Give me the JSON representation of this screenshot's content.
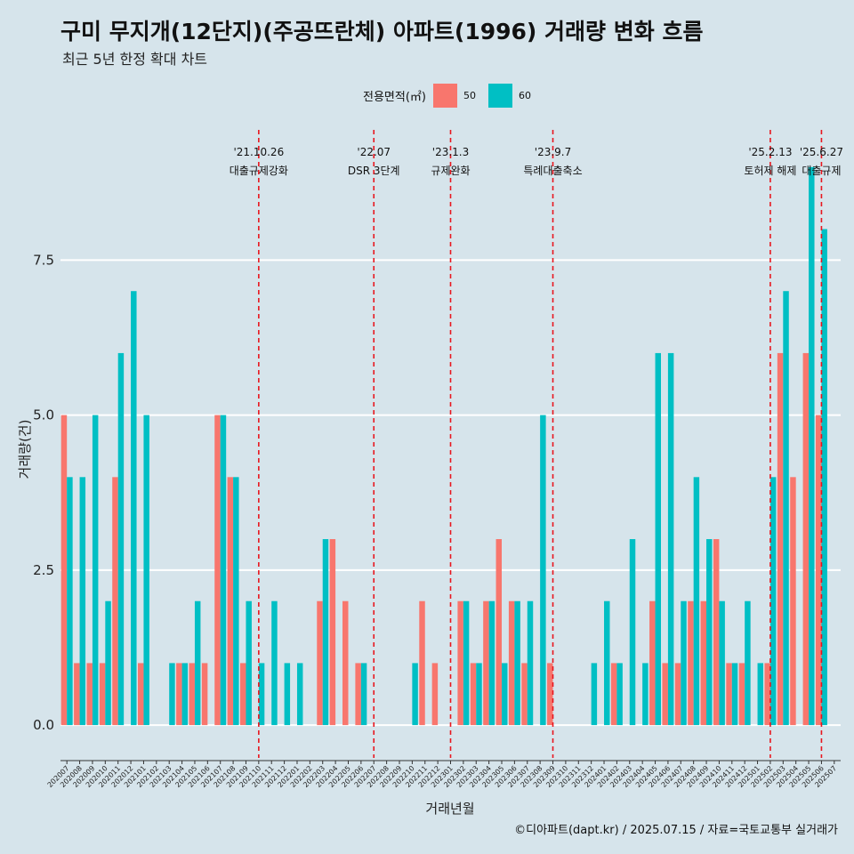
{
  "title": "구미 무지개(12단지)(주공뜨란체) 아파트(1996) 거래량 변화 흐름",
  "subtitle": "최근 5년 한정 확대 차트",
  "caption": "©디아파트(dapt.kr) / 2025.07.15 / 자료=국토교통부 실거래가",
  "legend": {
    "title": "전용면적(㎡)",
    "items": [
      {
        "label": "50",
        "color": "#f8766d"
      },
      {
        "label": "60",
        "color": "#00bfc4"
      }
    ]
  },
  "chart_data": {
    "type": "bar",
    "xlabel": "거래년월",
    "ylabel": "거래량(건)",
    "ylim": [
      -0.4,
      9.6
    ],
    "yticks": [
      0,
      2.5,
      5,
      7.5
    ],
    "ytick_labels": [
      "0.0",
      "2.5",
      "5.0",
      "7.5"
    ],
    "categories": [
      "202007",
      "202008",
      "202009",
      "202010",
      "202011",
      "202012",
      "202101",
      "202102",
      "202103",
      "202104",
      "202105",
      "202106",
      "202107",
      "202108",
      "202109",
      "202110",
      "202111",
      "202112",
      "202201",
      "202202",
      "202203",
      "202204",
      "202205",
      "202206",
      "202207",
      "202208",
      "202209",
      "202210",
      "202211",
      "202212",
      "202301",
      "202302",
      "202303",
      "202304",
      "202305",
      "202306",
      "202307",
      "202308",
      "202309",
      "202310",
      "202311",
      "202312",
      "202401",
      "202402",
      "202403",
      "202404",
      "202405",
      "202406",
      "202407",
      "202408",
      "202409",
      "202410",
      "202411",
      "202412",
      "202501",
      "202502",
      "202503",
      "202504",
      "202505",
      "202506",
      "202507"
    ],
    "series": [
      {
        "name": "50",
        "color": "#f8766d",
        "values": [
          5,
          1,
          1,
          1,
          4,
          0,
          1,
          0,
          0,
          1,
          1,
          1,
          5,
          4,
          1,
          0,
          0,
          0,
          0,
          0,
          2,
          3,
          2,
          1,
          0,
          0,
          0,
          0,
          2,
          1,
          0,
          2,
          1,
          2,
          3,
          2,
          1,
          0,
          1,
          0,
          0,
          0,
          0,
          1,
          0,
          0,
          2,
          1,
          1,
          2,
          2,
          3,
          1,
          1,
          0,
          1,
          6,
          4,
          6,
          5,
          0
        ]
      },
      {
        "name": "60",
        "color": "#00bfc4",
        "values": [
          4,
          4,
          5,
          2,
          6,
          7,
          5,
          0,
          1,
          1,
          2,
          0,
          5,
          4,
          2,
          1,
          2,
          1,
          1,
          0,
          3,
          0,
          0,
          1,
          0,
          0,
          0,
          1,
          0,
          0,
          0,
          2,
          1,
          2,
          1,
          2,
          2,
          5,
          0,
          0,
          0,
          1,
          2,
          1,
          3,
          1,
          6,
          6,
          2,
          4,
          3,
          2,
          1,
          2,
          1,
          4,
          7,
          0,
          9,
          8,
          0
        ]
      }
    ],
    "events": [
      {
        "date": "'21.10.26",
        "label": "대출규제강화",
        "at": "202110"
      },
      {
        "date": "'22.07",
        "label": "DSR 3단계",
        "at": "202207"
      },
      {
        "date": "'23.1.3",
        "label": "규제완화",
        "at": "202301"
      },
      {
        "date": "'23.9.7",
        "label": "특례대출축소",
        "at": "202309"
      },
      {
        "date": "'25.2.13",
        "label": "토허제 해제",
        "at": "202502"
      },
      {
        "date": "'25.6.27",
        "label": "대출규제",
        "at": "202506"
      }
    ]
  }
}
